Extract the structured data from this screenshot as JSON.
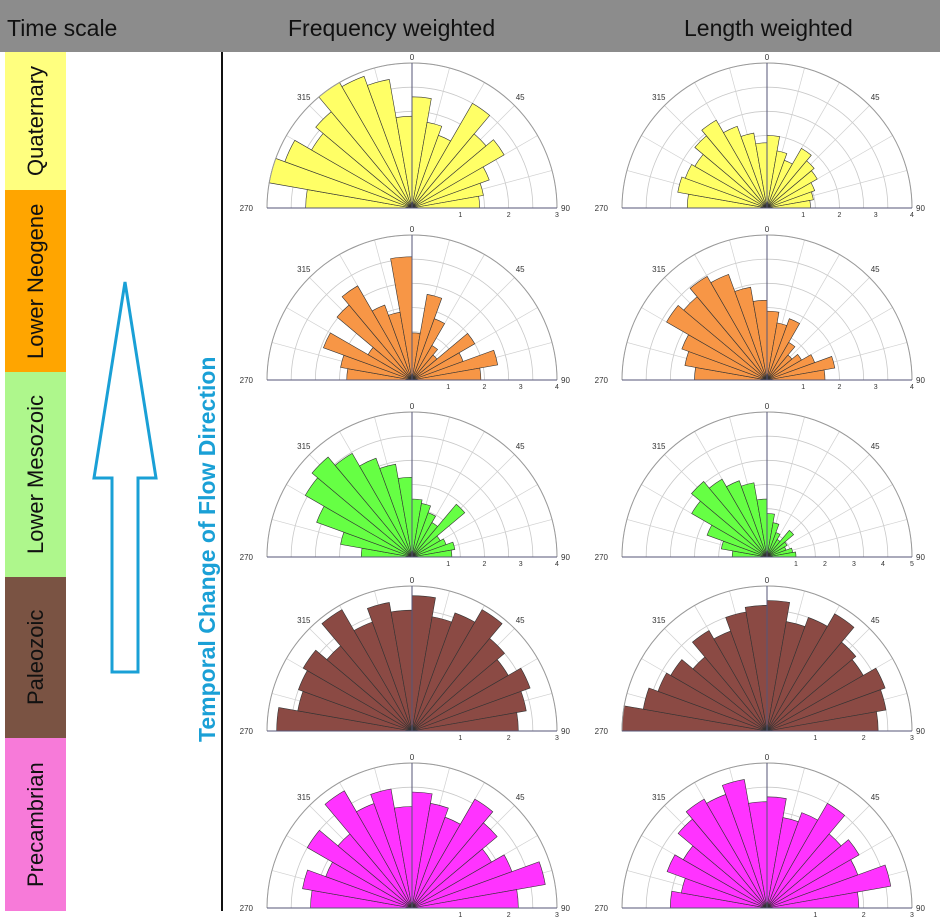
{
  "header": {
    "time_scale": "Time scale",
    "col_frequency": "Frequency weighted",
    "col_length": "Length weighted"
  },
  "side_title": "Temporal Change of Flow Direction",
  "eras": [
    {
      "label": "Quaternary",
      "color": "#ffff7f"
    },
    {
      "label": "Lower Neogene",
      "color": "#ffa500"
    },
    {
      "label": "Lower Mesozoic",
      "color": "#aef78c"
    },
    {
      "label": "Paleozoic",
      "color": "#7a5343"
    },
    {
      "label": "Precambrian",
      "color": "#f77ad9"
    }
  ],
  "arrow": {
    "color": "#1aa0d6"
  },
  "chart_data": [
    {
      "type": "rose",
      "weighting": "frequency",
      "era": "Quaternary",
      "fill": "#ffff66",
      "angle_labels": [
        "270",
        "315",
        "0",
        "45",
        "90"
      ],
      "radial_max": 3,
      "radial_ticks": [
        "1",
        "2",
        "3"
      ],
      "values": [
        2.2,
        3.1,
        2.8,
        2.4,
        2.6,
        3.2,
        2.9,
        2.7,
        1.9,
        2.3,
        1.8,
        1.6,
        2.5,
        2.0,
        2.2,
        1.7,
        1.5,
        1.4
      ]
    },
    {
      "type": "rose",
      "weighting": "length",
      "era": "Quaternary",
      "fill": "#ffff66",
      "angle_labels": [
        "270",
        "315",
        "0",
        "45",
        "90"
      ],
      "radial_max": 4,
      "radial_ticks": [
        "1",
        "2",
        "3",
        "4"
      ],
      "values": [
        2.2,
        2.5,
        2.4,
        2.3,
        2.6,
        2.8,
        2.4,
        2.1,
        1.8,
        2.0,
        1.6,
        1.4,
        1.9,
        1.7,
        1.6,
        1.4,
        1.3,
        1.2
      ]
    },
    {
      "type": "rose",
      "weighting": "frequency",
      "era": "Lower Neogene",
      "fill": "#f79646",
      "angle_labels": [
        "270",
        "315",
        "0",
        "45",
        "90"
      ],
      "radial_max": 4,
      "radial_ticks": [
        "1",
        "2",
        "3",
        "4"
      ],
      "values": [
        1.8,
        2.0,
        2.6,
        1.4,
        2.7,
        3.0,
        2.2,
        1.9,
        3.4,
        1.3,
        2.4,
        1.8,
        1.1,
        0.9,
        2.0,
        1.5,
        2.4,
        1.9
      ]
    },
    {
      "type": "rose",
      "weighting": "length",
      "era": "Lower Neogene",
      "fill": "#f79646",
      "angle_labels": [
        "270",
        "315",
        "0",
        "45",
        "90"
      ],
      "radial_max": 4,
      "radial_ticks": [
        "1",
        "2",
        "3",
        "4"
      ],
      "values": [
        2.0,
        2.3,
        2.5,
        3.2,
        3.0,
        3.3,
        3.1,
        2.6,
        2.2,
        1.9,
        1.6,
        1.8,
        1.2,
        0.9,
        1.1,
        1.4,
        1.9,
        1.6
      ]
    },
    {
      "type": "rose",
      "weighting": "frequency",
      "era": "Lower Mesozoic",
      "fill": "#66ff44",
      "angle_labels": [
        "270",
        "315",
        "0",
        "45",
        "90"
      ],
      "radial_max": 4,
      "radial_ticks": [
        "1",
        "2",
        "3",
        "4"
      ],
      "values": [
        1.4,
        2.0,
        2.8,
        3.4,
        3.6,
        3.3,
        2.9,
        2.6,
        2.2,
        1.6,
        1.5,
        1.3,
        1.1,
        1.9,
        0.9,
        1.0,
        1.2,
        1.1
      ]
    },
    {
      "type": "rose",
      "weighting": "length",
      "era": "Lower Mesozoic",
      "fill": "#66ff44",
      "angle_labels": [
        "270",
        "315",
        "0",
        "45",
        "90"
      ],
      "radial_max": 5,
      "radial_ticks": [
        "1",
        "2",
        "3",
        "4",
        "5"
      ],
      "values": [
        1.2,
        1.6,
        2.2,
        3.0,
        3.4,
        3.1,
        2.8,
        2.6,
        2.0,
        1.5,
        1.2,
        0.9,
        0.7,
        1.2,
        0.8,
        0.7,
        0.9,
        1.0
      ]
    },
    {
      "type": "rose",
      "weighting": "frequency",
      "era": "Paleozoic",
      "fill": "#8b4a44",
      "angle_labels": [
        "270",
        "315",
        "0",
        "45",
        "90"
      ],
      "radial_max": 3,
      "radial_ticks": [
        "1",
        "2",
        "3"
      ],
      "values": [
        2.8,
        2.4,
        2.5,
        2.6,
        2.3,
        2.9,
        2.4,
        2.7,
        2.5,
        2.8,
        2.4,
        2.6,
        2.9,
        2.5,
        2.3,
        2.6,
        2.4,
        2.2
      ]
    },
    {
      "type": "rose",
      "weighting": "length",
      "era": "Paleozoic",
      "fill": "#8b4a44",
      "angle_labels": [
        "270",
        "315",
        "0",
        "45",
        "90"
      ],
      "radial_max": 3,
      "radial_ticks": [
        "1",
        "2",
        "3"
      ],
      "values": [
        3.1,
        2.6,
        2.4,
        2.3,
        2.0,
        2.4,
        2.2,
        2.5,
        2.6,
        2.7,
        2.3,
        2.5,
        2.8,
        2.4,
        2.3,
        2.6,
        2.5,
        2.3
      ]
    },
    {
      "type": "rose",
      "weighting": "frequency",
      "era": "Precambrian",
      "fill": "#ff33ff",
      "angle_labels": [
        "270",
        "315",
        "0",
        "45",
        "90"
      ],
      "radial_max": 3,
      "radial_ticks": [
        "1",
        "2",
        "3"
      ],
      "values": [
        2.1,
        2.3,
        1.9,
        2.5,
        2.0,
        2.8,
        2.3,
        2.5,
        2.1,
        2.4,
        2.2,
        2.0,
        2.6,
        2.3,
        1.9,
        2.2,
        2.8,
        2.2
      ]
    },
    {
      "type": "rose",
      "weighting": "length",
      "era": "Precambrian",
      "fill": "#ff33ff",
      "angle_labels": [
        "270",
        "315",
        "0",
        "45",
        "90"
      ],
      "radial_max": 3,
      "radial_ticks": [
        "1",
        "2",
        "3"
      ],
      "values": [
        2.0,
        1.8,
        2.2,
        2.0,
        2.4,
        2.6,
        2.5,
        2.7,
        2.2,
        2.3,
        1.9,
        2.1,
        2.5,
        2.0,
        2.2,
        2.0,
        2.6,
        1.9
      ]
    }
  ]
}
